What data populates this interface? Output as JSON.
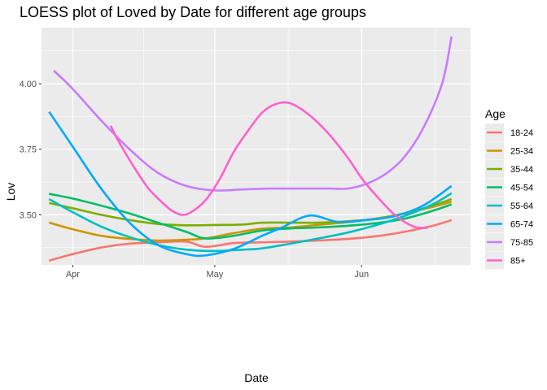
{
  "chart_data": {
    "type": "line",
    "title": "LOESS plot of Loved by Date for different age groups",
    "xlabel": "Date",
    "ylabel": "Lov",
    "x_ticks": [
      {
        "label": "Apr",
        "x": 0
      },
      {
        "label": "May",
        "x": 30
      },
      {
        "label": "Jun",
        "x": 61
      }
    ],
    "y_ticks": [
      3.5,
      3.75,
      4.0
    ],
    "y_tick_labels": [
      "3.50",
      "3.75",
      "4.00"
    ],
    "xlim": [
      -6.6,
      84
    ],
    "ylim": [
      3.309,
      4.214
    ],
    "grid": true,
    "legend": {
      "title": "Age",
      "position": "right"
    },
    "series": [
      {
        "name": "18-24",
        "color": "#F8766D",
        "x": [
          -5,
          0,
          6,
          12,
          18,
          24,
          28,
          34,
          40,
          46,
          52,
          58,
          64,
          70,
          76,
          80
        ],
        "y": [
          3.325,
          3.35,
          3.375,
          3.39,
          3.395,
          3.398,
          3.378,
          3.392,
          3.395,
          3.398,
          3.402,
          3.408,
          3.418,
          3.435,
          3.458,
          3.48
        ]
      },
      {
        "name": "25-34",
        "color": "#CD9600",
        "x": [
          -5,
          0,
          6,
          12,
          18,
          24,
          28,
          34,
          40,
          46,
          52,
          58,
          64,
          70,
          76,
          80
        ],
        "y": [
          3.47,
          3.445,
          3.42,
          3.408,
          3.402,
          3.405,
          3.41,
          3.43,
          3.447,
          3.452,
          3.462,
          3.472,
          3.485,
          3.505,
          3.53,
          3.55
        ]
      },
      {
        "name": "35-44",
        "color": "#7CAE00",
        "x": [
          -5,
          0,
          6,
          12,
          18,
          24,
          30,
          36,
          40,
          46,
          52,
          58,
          64,
          70,
          76,
          80
        ],
        "y": [
          3.545,
          3.525,
          3.5,
          3.48,
          3.465,
          3.46,
          3.461,
          3.463,
          3.47,
          3.47,
          3.47,
          3.475,
          3.485,
          3.505,
          3.535,
          3.56
        ]
      },
      {
        "name": "45-54",
        "color": "#00BE67",
        "x": [
          -5,
          0,
          6,
          12,
          18,
          24,
          28,
          34,
          40,
          46,
          52,
          58,
          64,
          70,
          76,
          80
        ],
        "y": [
          3.58,
          3.562,
          3.535,
          3.505,
          3.47,
          3.435,
          3.41,
          3.42,
          3.44,
          3.448,
          3.452,
          3.458,
          3.468,
          3.485,
          3.515,
          3.54
        ]
      },
      {
        "name": "55-64",
        "color": "#00BFC4",
        "x": [
          -5,
          0,
          6,
          12,
          18,
          24,
          30,
          36,
          40,
          46,
          52,
          58,
          64,
          70,
          76,
          80
        ],
        "y": [
          3.56,
          3.51,
          3.455,
          3.415,
          3.385,
          3.367,
          3.362,
          3.367,
          3.372,
          3.39,
          3.41,
          3.432,
          3.46,
          3.495,
          3.54,
          3.582
        ]
      },
      {
        "name": "65-74",
        "color": "#00A9FF",
        "x": [
          -5,
          0,
          6,
          12,
          18,
          24,
          28,
          34,
          40,
          44,
          50,
          56,
          62,
          68,
          74,
          80
        ],
        "y": [
          3.893,
          3.76,
          3.6,
          3.47,
          3.385,
          3.35,
          3.345,
          3.37,
          3.42,
          3.45,
          3.497,
          3.473,
          3.48,
          3.495,
          3.535,
          3.61
        ]
      },
      {
        "name": "75-85",
        "color": "#C77CFF",
        "x": [
          -4,
          0,
          6,
          12,
          18,
          24,
          30,
          36,
          42,
          48,
          54,
          58,
          62,
          66,
          70,
          74,
          78,
          80
        ],
        "y": [
          4.05,
          3.98,
          3.86,
          3.75,
          3.66,
          3.61,
          3.593,
          3.597,
          3.6,
          3.6,
          3.6,
          3.6,
          3.618,
          3.655,
          3.72,
          3.83,
          4.0,
          4.18
        ]
      },
      {
        "name": "85+",
        "color": "#FF61CC",
        "x": [
          8,
          10,
          13,
          16,
          19,
          21,
          23,
          25,
          28,
          31,
          34,
          37,
          40,
          43,
          46,
          50,
          54,
          58,
          61,
          64,
          68,
          72,
          75
        ],
        "y": [
          3.84,
          3.77,
          3.68,
          3.6,
          3.545,
          3.515,
          3.5,
          3.51,
          3.555,
          3.635,
          3.74,
          3.82,
          3.89,
          3.923,
          3.925,
          3.88,
          3.81,
          3.72,
          3.64,
          3.575,
          3.5,
          3.455,
          3.45
        ]
      }
    ]
  }
}
